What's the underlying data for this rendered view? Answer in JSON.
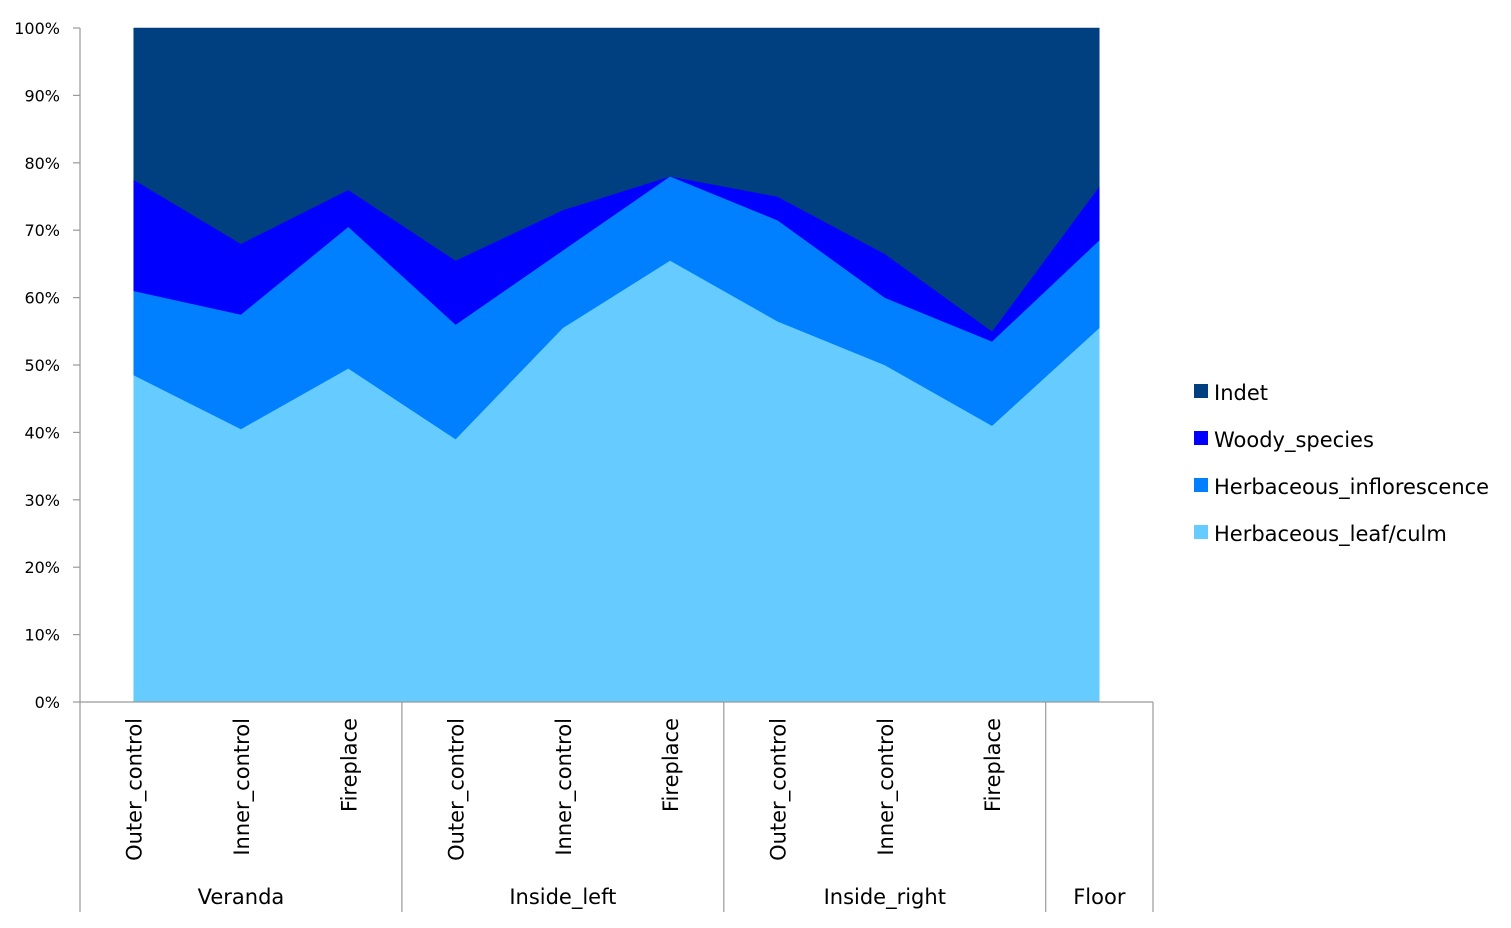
{
  "chart_data": {
    "type": "area",
    "stacked": true,
    "percent_stacked": true,
    "ylim": [
      0,
      100
    ],
    "yticks": [
      "0%",
      "10%",
      "20%",
      "30%",
      "40%",
      "50%",
      "60%",
      "70%",
      "80%",
      "90%",
      "100%"
    ],
    "grid": false,
    "legend_position": "right",
    "categories": [
      "Outer_control",
      "Inner_control",
      "Fireplace",
      "Outer_control",
      "Inner_control",
      "Fireplace",
      "Outer_control",
      "Inner_control",
      "Fireplace",
      ""
    ],
    "groups": [
      {
        "label": "Veranda",
        "count": 3
      },
      {
        "label": "Inside_left",
        "count": 3
      },
      {
        "label": "Inside_right",
        "count": 3
      },
      {
        "label": "Floor",
        "count": 1
      }
    ],
    "series": [
      {
        "name": "Herbaceous_leaf/culm",
        "color": "#66CCFF",
        "values": [
          48.5,
          40.5,
          49.5,
          39,
          55.5,
          65.5,
          56.5,
          50,
          41,
          55.5
        ]
      },
      {
        "name": "Herbaceous_inflorescence",
        "color": "#0080FF",
        "values": [
          12.5,
          17,
          21,
          17,
          11.5,
          12.5,
          15,
          10,
          12.5,
          13
        ]
      },
      {
        "name": "Woody_species",
        "color": "#0000FF",
        "values": [
          16.5,
          10.5,
          5.5,
          9.5,
          6,
          0,
          3.5,
          6.5,
          1.5,
          8
        ]
      },
      {
        "name": "Indet",
        "color": "#003F80",
        "values": [
          22.5,
          32,
          24,
          34.5,
          27,
          22,
          25,
          33.5,
          45,
          23.5
        ]
      }
    ],
    "legend_order": [
      "Indet",
      "Woody_species",
      "Herbaceous_inflorescence",
      "Herbaceous_leaf/culm"
    ]
  }
}
